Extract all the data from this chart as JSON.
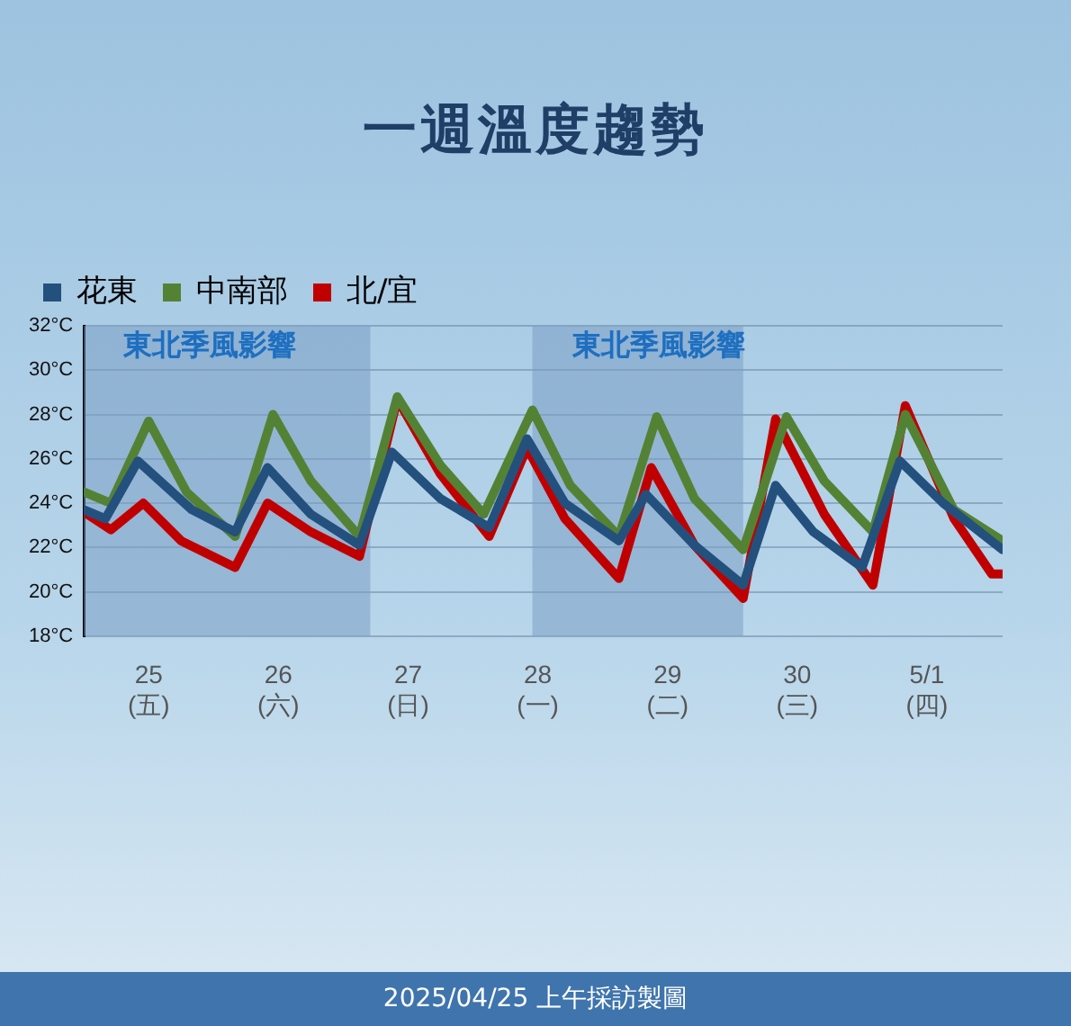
{
  "chart_data": {
    "type": "line",
    "title": "一週溫度趨勢",
    "series": [
      {
        "name": "花東",
        "color": "#24507e",
        "x": [
          "2025-04-25T00:00",
          "2025-04-25T04:00",
          "2025-04-25T10:00",
          "2025-04-25T20:00",
          "2025-04-26T04:00",
          "2025-04-26T10:00",
          "2025-04-26T18:00",
          "2025-04-27T03:00",
          "2025-04-27T09:00",
          "2025-04-27T18:00",
          "2025-04-28T03:00",
          "2025-04-28T10:00",
          "2025-04-28T17:00",
          "2025-04-29T03:00",
          "2025-04-29T08:00",
          "2025-04-29T17:00",
          "2025-04-30T02:00",
          "2025-04-30T08:00",
          "2025-04-30T15:00",
          "2025-05-01T00:00",
          "2025-05-01T07:00",
          "2025-05-01T15:00",
          "2025-05-02T02:00"
        ],
        "values": [
          23.7,
          23.3,
          25.9,
          23.7,
          22.7,
          25.6,
          23.5,
          22.1,
          26.3,
          24.2,
          22.9,
          26.9,
          24.0,
          22.3,
          24.4,
          22.1,
          20.3,
          24.8,
          22.7,
          21.1,
          25.9,
          24.0,
          21.9
        ]
      },
      {
        "name": "中南部",
        "color": "#548235",
        "x": [
          "2025-04-25T00:00",
          "2025-04-25T05:00",
          "2025-04-25T12:00",
          "2025-04-25T19:00",
          "2025-04-26T04:00",
          "2025-04-26T11:00",
          "2025-04-26T18:00",
          "2025-04-27T03:00",
          "2025-04-27T10:00",
          "2025-04-27T18:00",
          "2025-04-28T02:00",
          "2025-04-28T11:00",
          "2025-04-28T18:00",
          "2025-04-29T03:00",
          "2025-04-29T10:00",
          "2025-04-29T17:00",
          "2025-04-30T02:00",
          "2025-04-30T10:00",
          "2025-04-30T17:00",
          "2025-05-01T02:00",
          "2025-05-01T08:00",
          "2025-05-01T17:00",
          "2025-05-02T02:00"
        ],
        "values": [
          24.5,
          24.0,
          27.7,
          24.5,
          22.5,
          28.0,
          25.0,
          22.5,
          28.8,
          25.7,
          23.5,
          28.2,
          24.8,
          22.5,
          27.9,
          24.2,
          21.9,
          27.9,
          25.0,
          22.7,
          28.0,
          23.7,
          22.3
        ]
      },
      {
        "name": "北/宜",
        "color": "#c00000",
        "x": [
          "2025-04-25T00:00",
          "2025-04-25T05:00",
          "2025-04-25T11:00",
          "2025-04-25T18:00",
          "2025-04-26T04:00",
          "2025-04-26T10:00",
          "2025-04-26T18:00",
          "2025-04-27T03:00",
          "2025-04-27T10:00",
          "2025-04-27T18:00",
          "2025-04-28T03:00",
          "2025-04-28T10:00",
          "2025-04-28T17:00",
          "2025-04-29T03:00",
          "2025-04-29T09:00",
          "2025-04-29T17:00",
          "2025-04-30T02:00",
          "2025-04-30T08:00",
          "2025-04-30T17:00",
          "2025-05-01T02:00",
          "2025-05-01T08:00",
          "2025-05-01T17:00",
          "2025-05-02T00:00",
          "2025-05-02T02:00"
        ],
        "values": [
          23.6,
          22.8,
          24.0,
          22.3,
          21.1,
          24.0,
          22.7,
          21.6,
          28.7,
          25.3,
          22.5,
          26.5,
          23.3,
          20.6,
          25.6,
          22.1,
          19.7,
          27.8,
          23.5,
          20.3,
          28.4,
          23.3,
          20.8,
          20.8
        ]
      }
    ],
    "xlim": [
      "2025-04-25T00:00",
      "2025-05-02T02:00"
    ],
    "xticks": [
      {
        "value": "2025-04-25T12:00",
        "label": "25\n(五)"
      },
      {
        "value": "2025-04-26T12:00",
        "label": "26\n(六)"
      },
      {
        "value": "2025-04-27T12:00",
        "label": "27\n(日)"
      },
      {
        "value": "2025-04-28T12:00",
        "label": "28\n(一)"
      },
      {
        "value": "2025-04-29T12:00",
        "label": "29\n(二)"
      },
      {
        "value": "2025-04-30T12:00",
        "label": "30\n(三)"
      },
      {
        "value": "2025-05-01T12:00",
        "label": "5/1\n(四)"
      }
    ],
    "ylim": [
      18,
      32
    ],
    "yticks": [
      {
        "value": 18,
        "label": "18°C"
      },
      {
        "value": 20,
        "label": "20°C"
      },
      {
        "value": 22,
        "label": "22°C"
      },
      {
        "value": 24,
        "label": "24°C"
      },
      {
        "value": 26,
        "label": "26°C"
      },
      {
        "value": 28,
        "label": "28°C"
      },
      {
        "value": 30,
        "label": "30°C"
      },
      {
        "value": 32,
        "label": "32°C"
      }
    ],
    "bands": [
      {
        "axis": "x",
        "from": "2025-04-25T00:00",
        "to": "2025-04-27T05:00",
        "label": "東北季風影響",
        "color": "#7c9fc4"
      },
      {
        "axis": "x",
        "from": "2025-04-28T11:00",
        "to": "2025-04-30T02:00",
        "label": "東北季風影響",
        "color": "#7c9fc4"
      }
    ],
    "annotations": [
      "2025/04/25 上午採訪製圖"
    ],
    "grid": "y",
    "legend": "top left",
    "marker": "none",
    "line_style": "solid"
  }
}
